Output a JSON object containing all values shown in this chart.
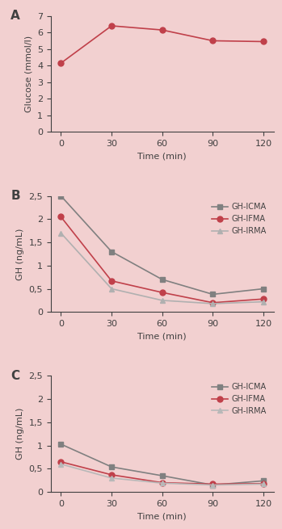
{
  "background_color": "#f2d0d0",
  "time_points": [
    0,
    30,
    60,
    90,
    120
  ],
  "panel_A": {
    "label": "A",
    "glucose_values": [
      4.15,
      6.4,
      6.15,
      5.5,
      5.45
    ],
    "ylabel": "Glucose (mmol/l)",
    "xlabel": "Time (min)",
    "ylim": [
      0,
      7
    ],
    "yticks": [
      0,
      1,
      2,
      3,
      4,
      5,
      6,
      7
    ],
    "line_color": "#c0404a",
    "marker": "o",
    "markersize": 5
  },
  "panel_B": {
    "label": "B",
    "ylabel": "GH (ng/mL)",
    "xlabel": "Time (min)",
    "ylim": [
      0,
      2.5
    ],
    "yticks": [
      0,
      0.5,
      1.0,
      1.5,
      2.0,
      2.5
    ],
    "yticklabels": [
      "0",
      "0,5",
      "1",
      "1,5",
      "2",
      "2,5"
    ],
    "series": {
      "GH-ICMA": {
        "values": [
          2.5,
          1.3,
          0.7,
          0.38,
          0.5
        ],
        "color": "#808080",
        "marker": "s",
        "markersize": 5,
        "linecolor": "#808080"
      },
      "GH-IFMA": {
        "values": [
          2.05,
          0.67,
          0.42,
          0.2,
          0.28
        ],
        "color": "#c0404a",
        "marker": "o",
        "markersize": 5,
        "linecolor": "#c0404a"
      },
      "GH-IRMA": {
        "values": [
          1.7,
          0.5,
          0.25,
          0.18,
          0.22
        ],
        "color": "#b0b0b0",
        "marker": "^",
        "markersize": 5,
        "linecolor": "#b0b0b0"
      }
    }
  },
  "panel_C": {
    "label": "C",
    "ylabel": "GH (ng/mL)",
    "xlabel": "Time (min)",
    "ylim": [
      0,
      2.5
    ],
    "yticks": [
      0,
      0.5,
      1.0,
      1.5,
      2.0,
      2.5
    ],
    "yticklabels": [
      "0",
      "0,5",
      "1",
      "1,5",
      "2",
      "2,5"
    ],
    "series": {
      "GH-ICMA": {
        "values": [
          1.03,
          0.54,
          0.35,
          0.15,
          0.24
        ],
        "color": "#808080",
        "marker": "s",
        "markersize": 5,
        "linecolor": "#808080"
      },
      "GH-IFMA": {
        "values": [
          0.65,
          0.37,
          0.2,
          0.17,
          0.18
        ],
        "color": "#c0404a",
        "marker": "o",
        "markersize": 5,
        "linecolor": "#c0404a"
      },
      "GH-IRMA": {
        "values": [
          0.6,
          0.3,
          0.19,
          0.15,
          0.17
        ],
        "color": "#b8b8b8",
        "marker": "^",
        "markersize": 5,
        "linecolor": "#b8b8b8"
      }
    }
  }
}
